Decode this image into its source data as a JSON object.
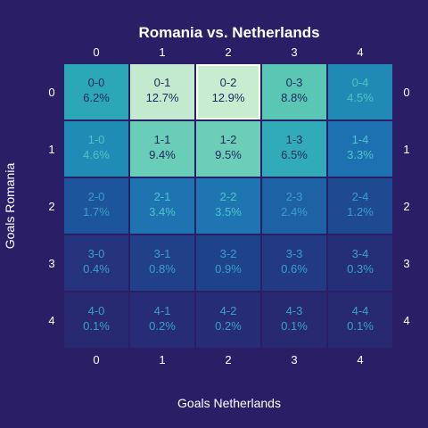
{
  "theme": {
    "background": "#2a1f66",
    "text": "#ffffff"
  },
  "chart_data": {
    "type": "heatmap",
    "title": "Romania vs. Netherlands",
    "xlabel": "Goals Netherlands",
    "ylabel": "Goals Romania",
    "x_categories": [
      "0",
      "1",
      "2",
      "3",
      "4"
    ],
    "y_categories": [
      "0",
      "1",
      "2",
      "3",
      "4"
    ],
    "cells": [
      [
        {
          "label": "0-0",
          "value": "6.2%"
        },
        {
          "label": "0-1",
          "value": "12.7%"
        },
        {
          "label": "0-2",
          "value": "12.9%"
        },
        {
          "label": "0-3",
          "value": "8.8%"
        },
        {
          "label": "0-4",
          "value": "4.5%"
        }
      ],
      [
        {
          "label": "1-0",
          "value": "4.6%"
        },
        {
          "label": "1-1",
          "value": "9.4%"
        },
        {
          "label": "1-2",
          "value": "9.5%"
        },
        {
          "label": "1-3",
          "value": "6.5%"
        },
        {
          "label": "1-4",
          "value": "3.3%"
        }
      ],
      [
        {
          "label": "2-0",
          "value": "1.7%"
        },
        {
          "label": "2-1",
          "value": "3.4%"
        },
        {
          "label": "2-2",
          "value": "3.5%"
        },
        {
          "label": "2-3",
          "value": "2.4%"
        },
        {
          "label": "2-4",
          "value": "1.2%"
        }
      ],
      [
        {
          "label": "3-0",
          "value": "0.4%"
        },
        {
          "label": "3-1",
          "value": "0.8%"
        },
        {
          "label": "3-2",
          "value": "0.9%"
        },
        {
          "label": "3-3",
          "value": "0.6%"
        },
        {
          "label": "3-4",
          "value": "0.3%"
        }
      ],
      [
        {
          "label": "4-0",
          "value": "0.1%"
        },
        {
          "label": "4-1",
          "value": "0.2%"
        },
        {
          "label": "4-2",
          "value": "0.2%"
        },
        {
          "label": "4-3",
          "value": "0.1%"
        },
        {
          "label": "4-4",
          "value": "0.1%"
        }
      ]
    ],
    "highlighted_cell": "0-2",
    "highlight_color": "#ffffff",
    "colorscale": [
      "#2a1f66",
      "#25317a",
      "#1b4f96",
      "#1e6fb0",
      "#22a0b8",
      "#5cc9b4",
      "#c8ecd0"
    ]
  }
}
